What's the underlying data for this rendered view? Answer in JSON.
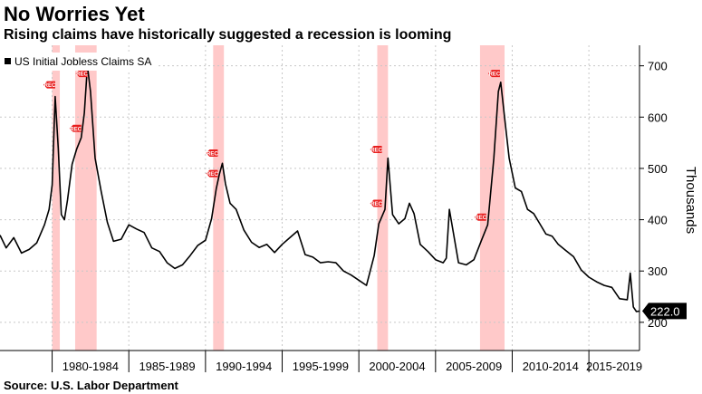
{
  "title": "No Worries Yet",
  "subtitle": "Rising claims have historically suggested a recession is looming",
  "source": "Source: U.S. Labor Department",
  "chart_data": {
    "type": "line",
    "ylabel": "Thousands",
    "ylim": [
      145,
      740
    ],
    "yticks": [
      200,
      300,
      400,
      500,
      600,
      700
    ],
    "x_range": [
      1976.6,
      2018.3
    ],
    "xtick_labels": [
      "1980-1984",
      "1985-1989",
      "1990-1994",
      "1995-1999",
      "2000-2004",
      "2005-2009",
      "2010-2014",
      "2015-2019"
    ],
    "legend": {
      "label": "US Initial Jobless Claims SA",
      "position": "top-left"
    },
    "last_value_label": "222.0",
    "grid": true,
    "colors": {
      "line": "#000000",
      "recession": "#ffc0c0",
      "marker": "#e81e1e",
      "last_label_bg": "#000000",
      "last_label_text": "#ffffff"
    },
    "recessions": [
      [
        1980.0,
        1980.5
      ],
      [
        1981.5,
        1982.9
      ],
      [
        1990.5,
        1991.2
      ],
      [
        2001.2,
        2001.9
      ],
      [
        2007.9,
        2009.5
      ]
    ],
    "rec_marker_text": "REC",
    "rec_markers": [
      {
        "x": 1980.2,
        "y": 663,
        "dir": "left"
      },
      {
        "x": 1981.9,
        "y": 578,
        "dir": "left"
      },
      {
        "x": 1982.3,
        "y": 685,
        "dir": "left"
      },
      {
        "x": 1990.8,
        "y": 530,
        "dir": "left"
      },
      {
        "x": 1990.8,
        "y": 490,
        "dir": "left"
      },
      {
        "x": 2001.5,
        "y": 537,
        "dir": "left"
      },
      {
        "x": 2001.5,
        "y": 432,
        "dir": "left"
      },
      {
        "x": 2008.3,
        "y": 405,
        "dir": "left"
      },
      {
        "x": 2009.2,
        "y": 685,
        "dir": "left"
      }
    ],
    "series": [
      {
        "name": "US Initial Jobless Claims SA",
        "x": [
          1976.6,
          1977.0,
          1977.5,
          1978.0,
          1978.5,
          1979.0,
          1979.5,
          1979.8,
          1980.0,
          1980.2,
          1980.4,
          1980.6,
          1980.8,
          1981.0,
          1981.3,
          1981.6,
          1981.9,
          1982.1,
          1982.3,
          1982.5,
          1982.8,
          1983.2,
          1983.6,
          1984.0,
          1984.5,
          1985.0,
          1985.5,
          1986.0,
          1986.5,
          1987.0,
          1987.5,
          1988.0,
          1988.5,
          1989.0,
          1989.5,
          1990.0,
          1990.4,
          1990.7,
          1990.9,
          1991.1,
          1991.3,
          1991.6,
          1992.0,
          1992.5,
          1993.0,
          1993.5,
          1994.0,
          1994.5,
          1995.0,
          1995.5,
          1996.0,
          1996.5,
          1997.0,
          1997.5,
          1998.0,
          1998.5,
          1999.0,
          1999.5,
          2000.0,
          2000.5,
          2001.0,
          2001.3,
          2001.7,
          2001.9,
          2002.2,
          2002.6,
          2003.0,
          2003.3,
          2003.6,
          2004.0,
          2004.5,
          2005.0,
          2005.5,
          2005.7,
          2005.9,
          2006.5,
          2007.0,
          2007.5,
          2008.0,
          2008.4,
          2008.8,
          2009.1,
          2009.25,
          2009.5,
          2009.8,
          2010.2,
          2010.6,
          2011.0,
          2011.4,
          2011.8,
          2012.2,
          2012.6,
          2013.0,
          2013.5,
          2014.0,
          2014.5,
          2015.0,
          2015.5,
          2016.0,
          2016.5,
          2017.0,
          2017.5,
          2017.7,
          2017.9,
          2018.1,
          2018.3
        ],
        "values": [
          370,
          345,
          365,
          335,
          342,
          355,
          390,
          420,
          468,
          640,
          540,
          410,
          400,
          438,
          508,
          538,
          560,
          608,
          700,
          650,
          520,
          455,
          395,
          358,
          362,
          390,
          382,
          375,
          345,
          338,
          316,
          305,
          312,
          330,
          350,
          360,
          402,
          460,
          488,
          510,
          470,
          432,
          420,
          380,
          356,
          346,
          352,
          336,
          352,
          365,
          378,
          332,
          327,
          316,
          318,
          316,
          300,
          292,
          282,
          272,
          330,
          392,
          420,
          520,
          410,
          392,
          402,
          432,
          412,
          352,
          338,
          322,
          316,
          325,
          420,
          316,
          312,
          322,
          360,
          390,
          520,
          650,
          668,
          600,
          520,
          462,
          455,
          420,
          412,
          392,
          372,
          368,
          352,
          340,
          328,
          302,
          288,
          279,
          272,
          268,
          246,
          244,
          296,
          230,
          221,
          222
        ]
      }
    ]
  }
}
